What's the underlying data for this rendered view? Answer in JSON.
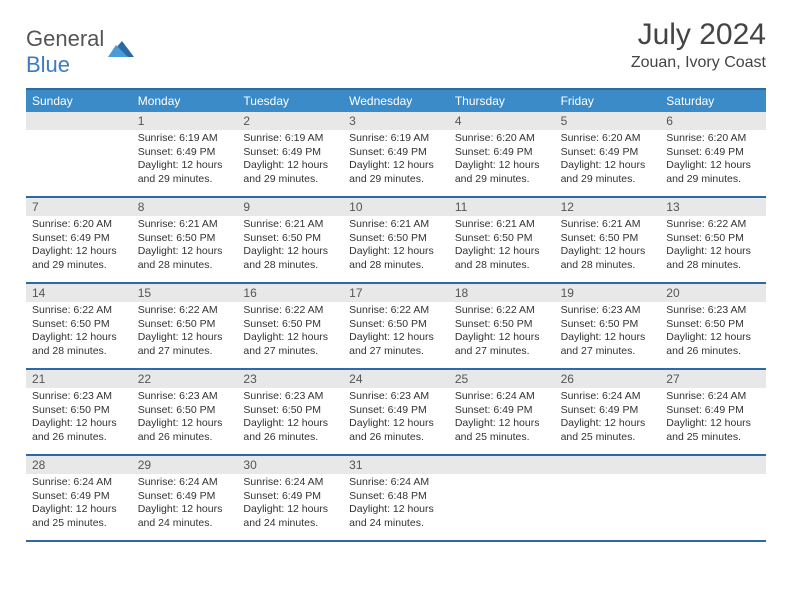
{
  "logo": {
    "word1": "General",
    "word2": "Blue"
  },
  "title": "July 2024",
  "location": "Zouan, Ivory Coast",
  "colors": {
    "header_bg": "#3b8bc9",
    "border": "#2d6aa3",
    "daynum_bg": "#e8e8e8",
    "logo_blue": "#3b7bbf"
  },
  "dayNames": [
    "Sunday",
    "Monday",
    "Tuesday",
    "Wednesday",
    "Thursday",
    "Friday",
    "Saturday"
  ],
  "weeks": [
    [
      null,
      {
        "n": "1",
        "sr": "6:19 AM",
        "ss": "6:49 PM",
        "dl": "12 hours and 29 minutes."
      },
      {
        "n": "2",
        "sr": "6:19 AM",
        "ss": "6:49 PM",
        "dl": "12 hours and 29 minutes."
      },
      {
        "n": "3",
        "sr": "6:19 AM",
        "ss": "6:49 PM",
        "dl": "12 hours and 29 minutes."
      },
      {
        "n": "4",
        "sr": "6:20 AM",
        "ss": "6:49 PM",
        "dl": "12 hours and 29 minutes."
      },
      {
        "n": "5",
        "sr": "6:20 AM",
        "ss": "6:49 PM",
        "dl": "12 hours and 29 minutes."
      },
      {
        "n": "6",
        "sr": "6:20 AM",
        "ss": "6:49 PM",
        "dl": "12 hours and 29 minutes."
      }
    ],
    [
      {
        "n": "7",
        "sr": "6:20 AM",
        "ss": "6:49 PM",
        "dl": "12 hours and 29 minutes."
      },
      {
        "n": "8",
        "sr": "6:21 AM",
        "ss": "6:50 PM",
        "dl": "12 hours and 28 minutes."
      },
      {
        "n": "9",
        "sr": "6:21 AM",
        "ss": "6:50 PM",
        "dl": "12 hours and 28 minutes."
      },
      {
        "n": "10",
        "sr": "6:21 AM",
        "ss": "6:50 PM",
        "dl": "12 hours and 28 minutes."
      },
      {
        "n": "11",
        "sr": "6:21 AM",
        "ss": "6:50 PM",
        "dl": "12 hours and 28 minutes."
      },
      {
        "n": "12",
        "sr": "6:21 AM",
        "ss": "6:50 PM",
        "dl": "12 hours and 28 minutes."
      },
      {
        "n": "13",
        "sr": "6:22 AM",
        "ss": "6:50 PM",
        "dl": "12 hours and 28 minutes."
      }
    ],
    [
      {
        "n": "14",
        "sr": "6:22 AM",
        "ss": "6:50 PM",
        "dl": "12 hours and 28 minutes."
      },
      {
        "n": "15",
        "sr": "6:22 AM",
        "ss": "6:50 PM",
        "dl": "12 hours and 27 minutes."
      },
      {
        "n": "16",
        "sr": "6:22 AM",
        "ss": "6:50 PM",
        "dl": "12 hours and 27 minutes."
      },
      {
        "n": "17",
        "sr": "6:22 AM",
        "ss": "6:50 PM",
        "dl": "12 hours and 27 minutes."
      },
      {
        "n": "18",
        "sr": "6:22 AM",
        "ss": "6:50 PM",
        "dl": "12 hours and 27 minutes."
      },
      {
        "n": "19",
        "sr": "6:23 AM",
        "ss": "6:50 PM",
        "dl": "12 hours and 27 minutes."
      },
      {
        "n": "20",
        "sr": "6:23 AM",
        "ss": "6:50 PM",
        "dl": "12 hours and 26 minutes."
      }
    ],
    [
      {
        "n": "21",
        "sr": "6:23 AM",
        "ss": "6:50 PM",
        "dl": "12 hours and 26 minutes."
      },
      {
        "n": "22",
        "sr": "6:23 AM",
        "ss": "6:50 PM",
        "dl": "12 hours and 26 minutes."
      },
      {
        "n": "23",
        "sr": "6:23 AM",
        "ss": "6:50 PM",
        "dl": "12 hours and 26 minutes."
      },
      {
        "n": "24",
        "sr": "6:23 AM",
        "ss": "6:49 PM",
        "dl": "12 hours and 26 minutes."
      },
      {
        "n": "25",
        "sr": "6:24 AM",
        "ss": "6:49 PM",
        "dl": "12 hours and 25 minutes."
      },
      {
        "n": "26",
        "sr": "6:24 AM",
        "ss": "6:49 PM",
        "dl": "12 hours and 25 minutes."
      },
      {
        "n": "27",
        "sr": "6:24 AM",
        "ss": "6:49 PM",
        "dl": "12 hours and 25 minutes."
      }
    ],
    [
      {
        "n": "28",
        "sr": "6:24 AM",
        "ss": "6:49 PM",
        "dl": "12 hours and 25 minutes."
      },
      {
        "n": "29",
        "sr": "6:24 AM",
        "ss": "6:49 PM",
        "dl": "12 hours and 24 minutes."
      },
      {
        "n": "30",
        "sr": "6:24 AM",
        "ss": "6:49 PM",
        "dl": "12 hours and 24 minutes."
      },
      {
        "n": "31",
        "sr": "6:24 AM",
        "ss": "6:48 PM",
        "dl": "12 hours and 24 minutes."
      },
      null,
      null,
      null
    ]
  ],
  "labels": {
    "sunrise": "Sunrise:",
    "sunset": "Sunset:",
    "daylight": "Daylight:"
  }
}
